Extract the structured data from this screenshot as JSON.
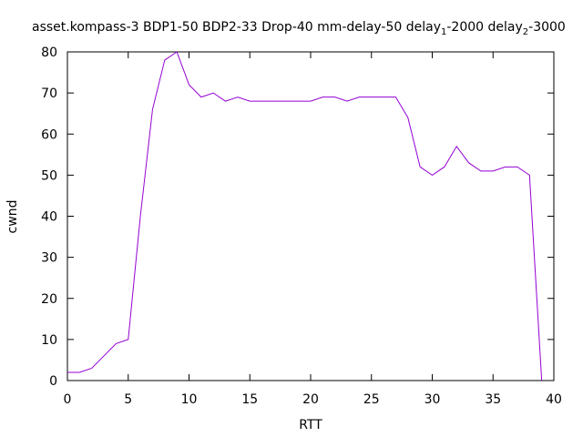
{
  "chart_data": {
    "type": "line",
    "title": {
      "prefix": "asset.kompass-3 BDP1-50 BDP2-33 Drop-40 mm-delay-50 delay",
      "sub1": "1",
      "mid": "-2000 delay",
      "sub2": "2",
      "suffix": "-3000"
    },
    "xlabel": "RTT",
    "ylabel": "cwnd",
    "xlim": [
      0,
      40
    ],
    "ylim": [
      0,
      80
    ],
    "xticks": [
      0,
      5,
      10,
      15,
      20,
      25,
      30,
      35,
      40
    ],
    "yticks": [
      0,
      10,
      20,
      30,
      40,
      50,
      60,
      70,
      80
    ],
    "grid": false,
    "legend": "none",
    "series": [
      {
        "color": "#9400d3",
        "x": [
          0,
          1,
          2,
          3,
          4,
          5,
          6,
          7,
          8,
          9,
          10,
          11,
          12,
          13,
          14,
          15,
          16,
          17,
          18,
          19,
          20,
          21,
          22,
          23,
          24,
          25,
          26,
          27,
          28,
          29,
          30,
          31,
          32,
          33,
          34,
          35,
          36,
          37,
          38,
          39
        ],
        "y": [
          2,
          2,
          3,
          6,
          9,
          10,
          40,
          66,
          78,
          80,
          72,
          69,
          70,
          68,
          69,
          68,
          68,
          68,
          68,
          68,
          68,
          69,
          69,
          68,
          69,
          69,
          69,
          69,
          64,
          52,
          50,
          52,
          57,
          53,
          51,
          51,
          52,
          52,
          50,
          0
        ]
      }
    ]
  }
}
